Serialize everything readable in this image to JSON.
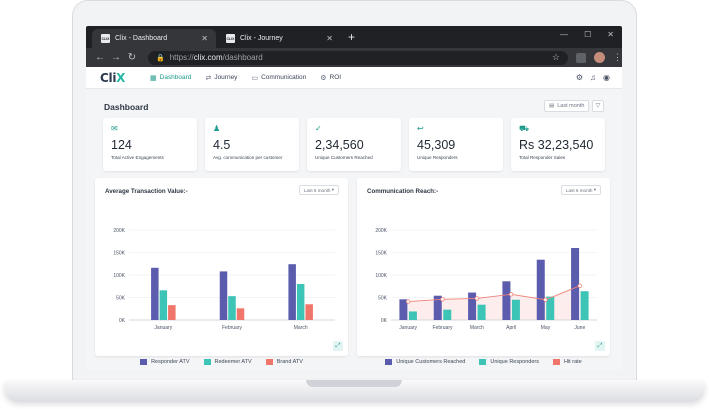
{
  "browser": {
    "tabs": [
      {
        "favicon": "CLIX",
        "title": "Clix - Dashboard",
        "close": "✕"
      },
      {
        "favicon": "CLIX",
        "title": "Clix - Journey",
        "close": "✕"
      }
    ],
    "new_tab": "+",
    "url_prefix": "https://",
    "url_main": "clix.com",
    "url_path": "/dashboard"
  },
  "app": {
    "logo": {
      "main": "Cli",
      "accent": "X"
    },
    "nav": [
      {
        "label": "Dashboard",
        "icon": "grid-icon",
        "active": true
      },
      {
        "label": "Journey",
        "icon": "journey-icon",
        "active": false
      },
      {
        "label": "Communication",
        "icon": "chat-icon",
        "active": false
      },
      {
        "label": "ROI",
        "icon": "roi-icon",
        "active": false
      }
    ]
  },
  "dashboard": {
    "title": "Dashboard",
    "filter_label": "Last month"
  },
  "kpis": [
    {
      "icon": "envelope-icon",
      "value": "124",
      "label": "Total Active Engagements"
    },
    {
      "icon": "users-icon",
      "value": "4.5",
      "label": "Avg. communication per customer"
    },
    {
      "icon": "user-check-icon",
      "value": "2,34,560",
      "label": "Unique Customers Reached"
    },
    {
      "icon": "user-reply-icon",
      "value": "45,309",
      "label": "Unique Responders"
    },
    {
      "icon": "cart-icon",
      "value": "Rs 32,23,540",
      "label": "Total Responder Sales"
    }
  ],
  "colors": {
    "purple": "#5c5cae",
    "teal": "#3cc4b6",
    "coral": "#f0766b",
    "hit_line": "#f08279",
    "accent": "#1e9a8c"
  },
  "chart_data": [
    {
      "type": "bar",
      "title": "Average Transaction Value:-",
      "range_label": "Last 6 month",
      "categories": [
        "January",
        "February",
        "March"
      ],
      "yticks": [
        "200K",
        "150K",
        "100K",
        "50K",
        "0K"
      ],
      "ylim": [
        0,
        200000
      ],
      "series": [
        {
          "name": "Responder ATV",
          "values": [
            116000,
            108000,
            124000
          ]
        },
        {
          "name": "Redeemer ATV",
          "values": [
            66000,
            53000,
            80000
          ]
        },
        {
          "name": "Brand ATV",
          "values": [
            33000,
            26000,
            35000
          ]
        }
      ],
      "legend": "bottom"
    },
    {
      "type": "bar",
      "title": "Communication Reach:-",
      "range_label": "Last 6 month",
      "categories": [
        "January",
        "February",
        "March",
        "April",
        "May",
        "June"
      ],
      "yticks": [
        "200K",
        "150K",
        "100K",
        "50K",
        "0K"
      ],
      "ylim": [
        0,
        200000
      ],
      "series": [
        {
          "name": "Unique Customers Reached",
          "values": [
            46000,
            54000,
            61000,
            86000,
            134000,
            160000
          ]
        },
        {
          "name": "Unique Responders",
          "values": [
            19000,
            23000,
            34000,
            45000,
            52000,
            64000
          ]
        },
        {
          "name": "Hit rate",
          "values": [
            41000,
            46000,
            48000,
            57000,
            45000,
            76000
          ]
        }
      ],
      "legend": "bottom"
    }
  ]
}
